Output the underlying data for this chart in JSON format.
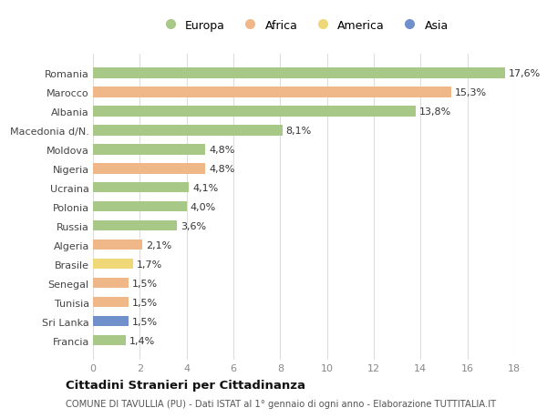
{
  "countries": [
    "Romania",
    "Marocco",
    "Albania",
    "Macedonia d/N.",
    "Moldova",
    "Nigeria",
    "Ucraina",
    "Polonia",
    "Russia",
    "Algeria",
    "Brasile",
    "Senegal",
    "Tunisia",
    "Sri Lanka",
    "Francia"
  ],
  "values": [
    17.6,
    15.3,
    13.8,
    8.1,
    4.8,
    4.8,
    4.1,
    4.0,
    3.6,
    2.1,
    1.7,
    1.5,
    1.5,
    1.5,
    1.4
  ],
  "labels": [
    "17,6%",
    "15,3%",
    "13,8%",
    "8,1%",
    "4,8%",
    "4,8%",
    "4,1%",
    "4,0%",
    "3,6%",
    "2,1%",
    "1,7%",
    "1,5%",
    "1,5%",
    "1,5%",
    "1,4%"
  ],
  "continents": [
    "Europa",
    "Africa",
    "Europa",
    "Europa",
    "Europa",
    "Africa",
    "Europa",
    "Europa",
    "Europa",
    "Africa",
    "America",
    "Africa",
    "Africa",
    "Asia",
    "Europa"
  ],
  "continent_colors": {
    "Europa": "#a8c888",
    "Africa": "#f0b888",
    "America": "#f0d878",
    "Asia": "#7090cc"
  },
  "legend_order": [
    "Europa",
    "Africa",
    "America",
    "Asia"
  ],
  "title": "Cittadini Stranieri per Cittadinanza",
  "subtitle": "COMUNE DI TAVULLIA (PU) - Dati ISTAT al 1° gennaio di ogni anno - Elaborazione TUTTITALIA.IT",
  "xlim": [
    0,
    18
  ],
  "xticks": [
    0,
    2,
    4,
    6,
    8,
    10,
    12,
    14,
    16,
    18
  ],
  "bg_color": "#ffffff",
  "fig_bg_color": "#ffffff",
  "bar_height": 0.55,
  "grid_color": "#dddddd",
  "label_fontsize": 8,
  "ytick_fontsize": 8,
  "xtick_fontsize": 8
}
